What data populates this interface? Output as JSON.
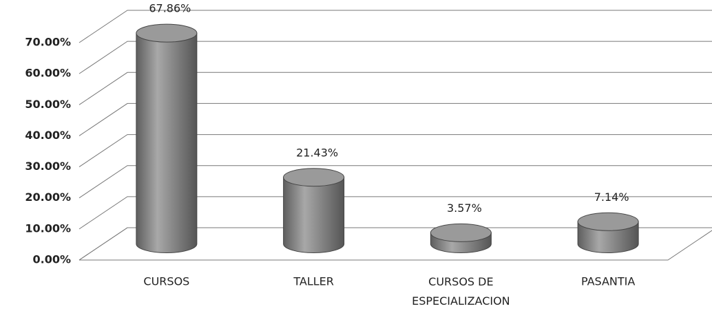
{
  "chart_data": {
    "type": "bar3d",
    "categories": [
      "CURSOS",
      "TALLER",
      "CURSOS DE ESPECIALIZACION",
      "PASANTIA"
    ],
    "values": [
      67.86,
      21.43,
      3.57,
      7.14
    ],
    "value_labels": [
      "67.86%",
      "21.43%",
      "3.57%",
      "7.14%"
    ],
    "color": "#8c8c8c",
    "ylim": [
      0,
      70
    ],
    "yticks": [
      {
        "value": 0,
        "label": "0.00%"
      },
      {
        "value": 10,
        "label": "10.00%"
      },
      {
        "value": 20,
        "label": "20.00%"
      },
      {
        "value": 30,
        "label": "30.00%"
      },
      {
        "value": 40,
        "label": "40.00%"
      },
      {
        "value": 50,
        "label": "50.00%"
      },
      {
        "value": 60,
        "label": "60.00%"
      },
      {
        "value": 70,
        "label": "70.00%"
      }
    ],
    "grid": true
  }
}
